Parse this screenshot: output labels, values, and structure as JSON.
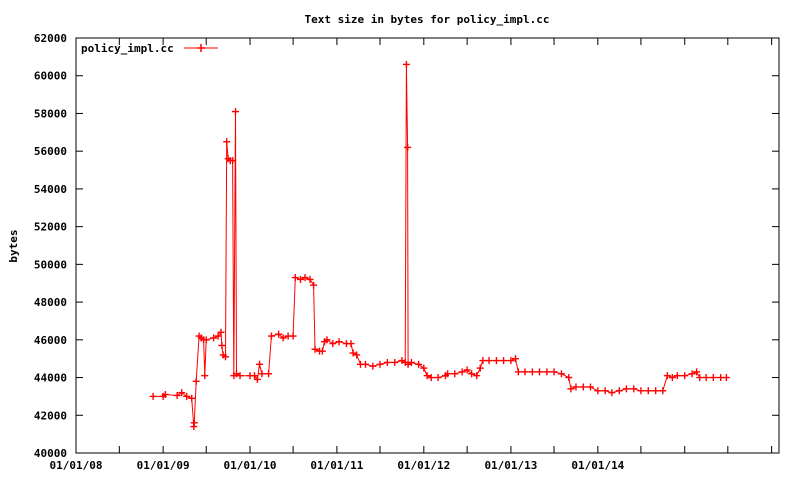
{
  "chart_data": {
    "type": "line",
    "title": "Text size in bytes for policy_impl.cc",
    "ylabel": "bytes",
    "xlabel": "",
    "xlim": [
      "2008-01-01",
      "2016-02-01"
    ],
    "ylim": [
      40000,
      62000
    ],
    "y_ticks": [
      40000,
      42000,
      44000,
      46000,
      48000,
      50000,
      52000,
      54000,
      56000,
      58000,
      60000,
      62000
    ],
    "x_ticks": [
      "2008-01-01",
      "2009-01-01",
      "2010-01-01",
      "2011-01-01",
      "2012-01-01",
      "2013-01-01",
      "2014-01-01"
    ],
    "x_tick_labels": [
      "01/01/08",
      "01/01/09",
      "01/01/10",
      "01/01/11",
      "01/01/12",
      "01/01/13",
      "01/01/14"
    ],
    "legend_position": "top-left",
    "grid": false,
    "color": "#ff0000",
    "series": [
      {
        "name": "policy_impl.cc",
        "points": [
          [
            "2008-11-20",
            43000
          ],
          [
            "2009-01-01",
            43000
          ],
          [
            "2009-01-10",
            43100
          ],
          [
            "2009-03-01",
            43050
          ],
          [
            "2009-03-20",
            43200
          ],
          [
            "2009-04-10",
            43000
          ],
          [
            "2009-05-01",
            42900
          ],
          [
            "2009-05-10",
            41400
          ],
          [
            "2009-05-12",
            41600
          ],
          [
            "2009-05-20",
            43800
          ],
          [
            "2009-06-01",
            46200
          ],
          [
            "2009-06-10",
            46100
          ],
          [
            "2009-06-20",
            46000
          ],
          [
            "2009-06-25",
            44100
          ],
          [
            "2009-07-01",
            46000
          ],
          [
            "2009-08-01",
            46100
          ],
          [
            "2009-08-20",
            46200
          ],
          [
            "2009-09-01",
            46400
          ],
          [
            "2009-09-05",
            45700
          ],
          [
            "2009-09-10",
            45200
          ],
          [
            "2009-09-20",
            45100
          ],
          [
            "2009-09-25",
            56500
          ],
          [
            "2009-10-01",
            55600
          ],
          [
            "2009-10-10",
            55500
          ],
          [
            "2009-10-20",
            55500
          ],
          [
            "2009-10-25",
            44100
          ],
          [
            "2009-11-01",
            58100
          ],
          [
            "2009-11-05",
            44200
          ],
          [
            "2009-11-20",
            44100
          ],
          [
            "2010-01-01",
            44100
          ],
          [
            "2010-01-20",
            44100
          ],
          [
            "2010-02-01",
            43900
          ],
          [
            "2010-02-10",
            44700
          ],
          [
            "2010-02-20",
            44200
          ],
          [
            "2010-03-20",
            44200
          ],
          [
            "2010-04-01",
            46200
          ],
          [
            "2010-05-01",
            46300
          ],
          [
            "2010-05-20",
            46100
          ],
          [
            "2010-06-10",
            46200
          ],
          [
            "2010-07-01",
            46200
          ],
          [
            "2010-07-10",
            49300
          ],
          [
            "2010-08-01",
            49200
          ],
          [
            "2010-08-20",
            49300
          ],
          [
            "2010-09-10",
            49200
          ],
          [
            "2010-09-25",
            48900
          ],
          [
            "2010-10-01",
            45500
          ],
          [
            "2010-10-20",
            45400
          ],
          [
            "2010-11-01",
            45400
          ],
          [
            "2010-11-10",
            45900
          ],
          [
            "2010-11-20",
            46000
          ],
          [
            "2010-12-15",
            45800
          ],
          [
            "2011-01-10",
            45900
          ],
          [
            "2011-02-10",
            45800
          ],
          [
            "2011-03-01",
            45800
          ],
          [
            "2011-03-10",
            45300
          ],
          [
            "2011-03-25",
            45200
          ],
          [
            "2011-04-10",
            44700
          ],
          [
            "2011-05-01",
            44700
          ],
          [
            "2011-06-01",
            44600
          ],
          [
            "2011-07-01",
            44700
          ],
          [
            "2011-08-01",
            44800
          ],
          [
            "2011-09-01",
            44800
          ],
          [
            "2011-10-01",
            44900
          ],
          [
            "2011-10-15",
            44800
          ],
          [
            "2011-10-20",
            60600
          ],
          [
            "2011-10-25",
            56200
          ],
          [
            "2011-10-27",
            44700
          ],
          [
            "2011-11-10",
            44800
          ],
          [
            "2011-12-10",
            44700
          ],
          [
            "2012-01-01",
            44500
          ],
          [
            "2012-01-15",
            44100
          ],
          [
            "2012-02-01",
            44000
          ],
          [
            "2012-03-01",
            44000
          ],
          [
            "2012-04-01",
            44100
          ],
          [
            "2012-04-10",
            44200
          ],
          [
            "2012-05-10",
            44200
          ],
          [
            "2012-06-10",
            44300
          ],
          [
            "2012-07-01",
            44400
          ],
          [
            "2012-07-20",
            44200
          ],
          [
            "2012-08-10",
            44100
          ],
          [
            "2012-08-25",
            44500
          ],
          [
            "2012-09-05",
            44900
          ],
          [
            "2012-10-01",
            44900
          ],
          [
            "2012-11-01",
            44900
          ],
          [
            "2012-12-01",
            44900
          ],
          [
            "2013-01-01",
            44900
          ],
          [
            "2013-01-20",
            45000
          ],
          [
            "2013-02-01",
            44300
          ],
          [
            "2013-03-01",
            44300
          ],
          [
            "2013-04-01",
            44300
          ],
          [
            "2013-05-01",
            44300
          ],
          [
            "2013-06-01",
            44300
          ],
          [
            "2013-07-01",
            44300
          ],
          [
            "2013-08-01",
            44200
          ],
          [
            "2013-09-01",
            44000
          ],
          [
            "2013-09-10",
            43400
          ],
          [
            "2013-10-01",
            43500
          ],
          [
            "2013-11-01",
            43500
          ],
          [
            "2013-12-01",
            43500
          ],
          [
            "2014-01-01",
            43300
          ],
          [
            "2014-02-01",
            43300
          ],
          [
            "2014-03-01",
            43200
          ],
          [
            "2014-04-01",
            43300
          ],
          [
            "2014-05-01",
            43400
          ],
          [
            "2014-06-01",
            43400
          ],
          [
            "2014-07-01",
            43300
          ],
          [
            "2014-08-01",
            43300
          ],
          [
            "2014-09-01",
            43300
          ],
          [
            "2014-10-01",
            43300
          ],
          [
            "2014-10-20",
            44100
          ],
          [
            "2014-11-10",
            44000
          ],
          [
            "2014-12-01",
            44100
          ],
          [
            "2015-01-01",
            44100
          ],
          [
            "2015-02-01",
            44200
          ],
          [
            "2015-02-20",
            44300
          ],
          [
            "2015-03-05",
            44000
          ],
          [
            "2015-04-01",
            44000
          ],
          [
            "2015-05-01",
            44000
          ],
          [
            "2015-06-01",
            44000
          ],
          [
            "2015-06-25",
            44000
          ]
        ]
      }
    ]
  }
}
